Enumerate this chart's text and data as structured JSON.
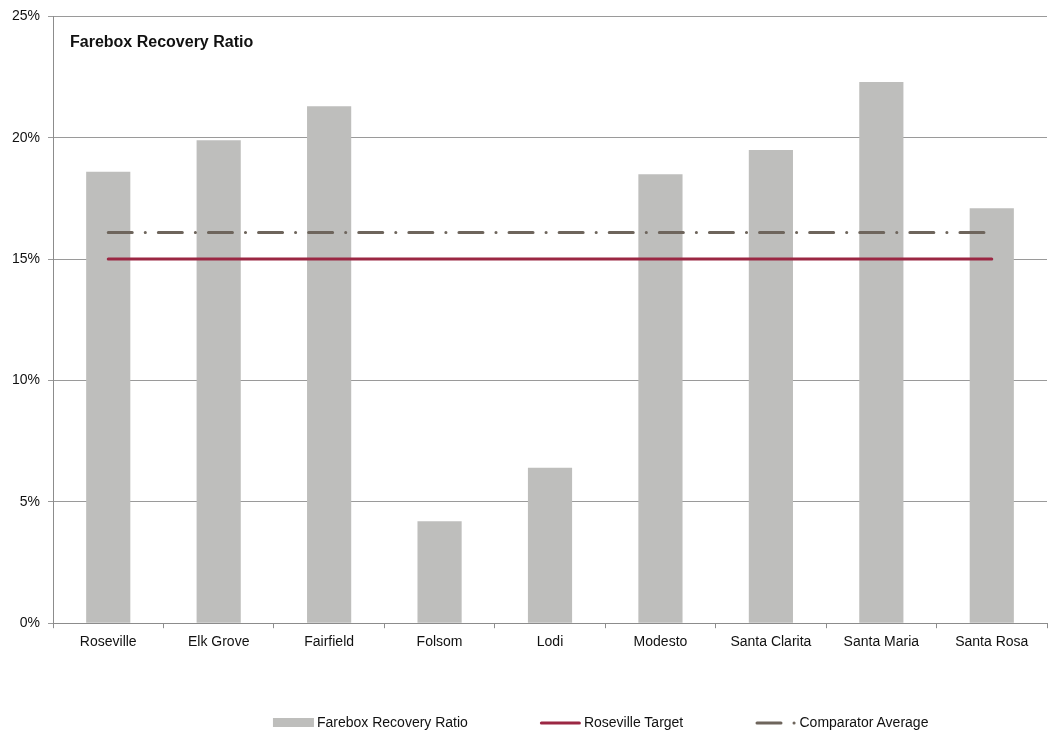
{
  "chart_data": {
    "type": "bar",
    "title": "Farebox Recovery Ratio",
    "categories": [
      "Roseville",
      "Elk Grove",
      "Fairfield",
      "Folsom",
      "Lodi",
      "Modesto",
      "Santa Clarita",
      "Santa Maria",
      "Santa Rosa"
    ],
    "series": [
      {
        "name": "Farebox Recovery Ratio",
        "color": "#bebebc",
        "values": [
          18.6,
          19.9,
          21.3,
          4.2,
          6.4,
          18.5,
          19.5,
          22.3,
          17.1
        ]
      },
      {
        "name": "Roseville Target",
        "type": "line",
        "color": "#9b2743",
        "line_style": "solid",
        "values": [
          15,
          15,
          15,
          15,
          15,
          15,
          15,
          15,
          15
        ]
      },
      {
        "name": "Comparator Average",
        "type": "line",
        "color": "#6e655c",
        "line_style": "dashed",
        "values": [
          16.1,
          16.1,
          16.1,
          16.1,
          16.1,
          16.1,
          16.1,
          16.1,
          16.1
        ]
      }
    ],
    "ylim": [
      0,
      25
    ],
    "yticks": [
      {
        "value": 0,
        "label": "0%"
      },
      {
        "value": 5,
        "label": "5%"
      },
      {
        "value": 10,
        "label": "10%"
      },
      {
        "value": 15,
        "label": "15%"
      },
      {
        "value": 20,
        "label": "20%"
      },
      {
        "value": 25,
        "label": "25%"
      }
    ],
    "grid": "y",
    "legend": "bottom",
    "marker": "none"
  }
}
